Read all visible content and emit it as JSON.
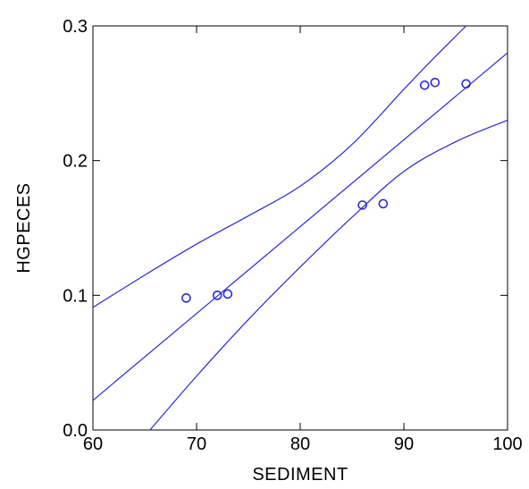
{
  "chart_data": {
    "type": "scatter",
    "xlabel": "SEDIMENT",
    "ylabel": "HGPECES",
    "xlim": [
      60,
      100
    ],
    "ylim": [
      0.0,
      0.3
    ],
    "xticks": [
      60,
      70,
      80,
      90,
      100
    ],
    "yticks": [
      0.0,
      0.1,
      0.2,
      0.3
    ],
    "ytick_labels": [
      "0.0",
      "0.1",
      "0.2",
      "0.3"
    ],
    "grid": false,
    "points": [
      {
        "x": 69,
        "y": 0.098
      },
      {
        "x": 72,
        "y": 0.1
      },
      {
        "x": 73,
        "y": 0.101
      },
      {
        "x": 86,
        "y": 0.167
      },
      {
        "x": 88,
        "y": 0.168
      },
      {
        "x": 92,
        "y": 0.256
      },
      {
        "x": 93,
        "y": 0.258
      },
      {
        "x": 96,
        "y": 0.257
      }
    ],
    "fit_line": [
      {
        "x": 60,
        "y": 0.022
      },
      {
        "x": 100,
        "y": 0.28
      }
    ],
    "upper_band": [
      {
        "x": 60,
        "y": 0.091
      },
      {
        "x": 65,
        "y": 0.115
      },
      {
        "x": 70,
        "y": 0.138
      },
      {
        "x": 75,
        "y": 0.159
      },
      {
        "x": 80,
        "y": 0.181
      },
      {
        "x": 85,
        "y": 0.212
      },
      {
        "x": 90,
        "y": 0.253
      },
      {
        "x": 93,
        "y": 0.277
      },
      {
        "x": 96,
        "y": 0.3
      }
    ],
    "lower_band": [
      {
        "x": 65.5,
        "y": 0.0
      },
      {
        "x": 70,
        "y": 0.04
      },
      {
        "x": 75,
        "y": 0.082
      },
      {
        "x": 80,
        "y": 0.121
      },
      {
        "x": 85,
        "y": 0.158
      },
      {
        "x": 90,
        "y": 0.192
      },
      {
        "x": 95,
        "y": 0.214
      },
      {
        "x": 100,
        "y": 0.23
      }
    ],
    "line_color": "#2a2ad9",
    "marker_color": "#2a2ad9",
    "marker": "hollow-circle"
  }
}
